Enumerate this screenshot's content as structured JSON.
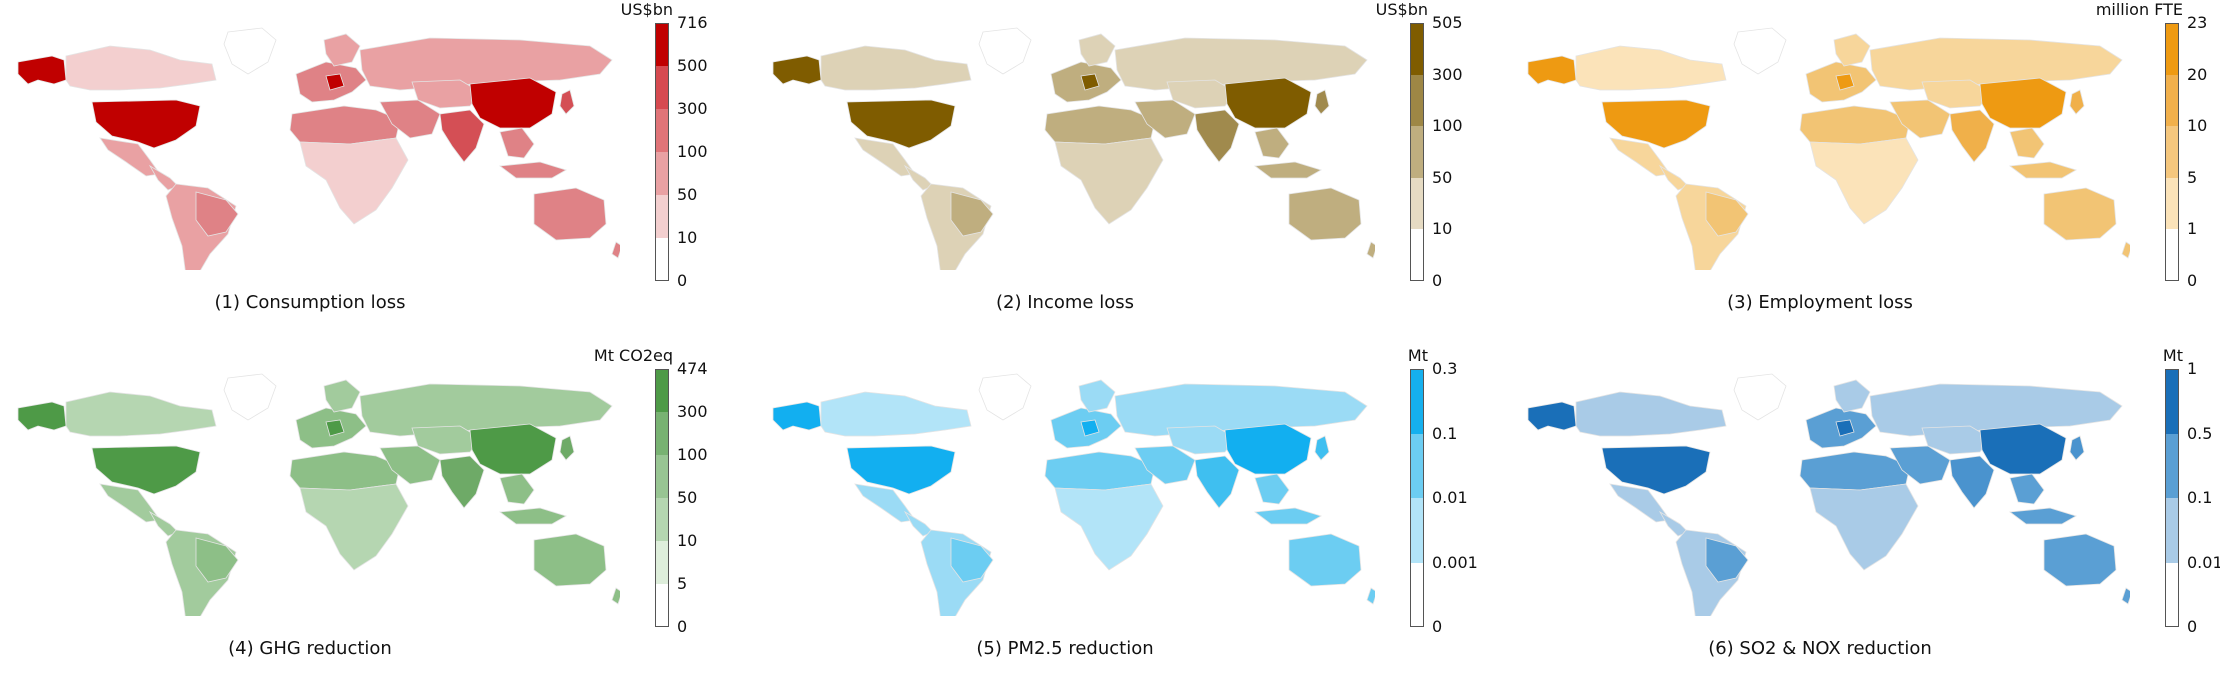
{
  "panels": [
    {
      "caption": "(1) Consumption loss",
      "unit": "US$bn",
      "ticks": [
        "0",
        "10",
        "50",
        "100",
        "300",
        "500",
        "716"
      ],
      "colors": [
        "#ffffff",
        "#f3cfcf",
        "#e9a1a3",
        "#e07478",
        "#d64a50",
        "#c00000"
      ],
      "palette": {
        "base": "#f3cfcf",
        "low": "#e9a1a3",
        "mid": "#df8286",
        "high": "#d44f55",
        "top": "#c00000"
      }
    },
    {
      "caption": "(2) Income loss",
      "unit": "US$bn",
      "ticks": [
        "0",
        "10",
        "50",
        "100",
        "300",
        "505"
      ],
      "colors": [
        "#ffffff",
        "#e6dbc3",
        "#bfae7f",
        "#9e8745",
        "#7f5c00"
      ],
      "palette": {
        "base": "#ddd2b6",
        "low": "#ddd2b6",
        "mid": "#bfae7f",
        "high": "#a08a4d",
        "top": "#7f5c00"
      }
    },
    {
      "caption": "(3) Employment loss",
      "unit": "million FTE",
      "ticks": [
        "0",
        "1",
        "5",
        "10",
        "20",
        "23"
      ],
      "colors": [
        "#ffffff",
        "#fbe3b9",
        "#f5c77e",
        "#f1b04c",
        "#ee9a12"
      ],
      "palette": {
        "base": "#fbe3b9",
        "low": "#f7d69b",
        "mid": "#f2c474",
        "high": "#f0b04a",
        "top": "#ee9a12"
      }
    },
    {
      "caption": "(4) GHG reduction",
      "unit": "Mt CO2eq",
      "ticks": [
        "0",
        "5",
        "10",
        "50",
        "100",
        "300",
        "474"
      ],
      "colors": [
        "#ffffff",
        "#deeedb",
        "#b5d6b1",
        "#98c593",
        "#78b272",
        "#4e9a47"
      ],
      "palette": {
        "base": "#b5d6b1",
        "low": "#a2cb9d",
        "mid": "#8dbf87",
        "high": "#6eaa67",
        "top": "#4e9a47"
      }
    },
    {
      "caption": "(5) PM2.5 reduction",
      "unit": "Mt",
      "ticks": [
        "0",
        "0.001",
        "0.01",
        "0.1",
        "0.3"
      ],
      "colors": [
        "#ffffff",
        "#b2e4f8",
        "#6ccdf2",
        "#15b0ee"
      ],
      "palette": {
        "base": "#b2e4f8",
        "low": "#9bdbf5",
        "mid": "#6ccdf2",
        "high": "#3fbff0",
        "top": "#12aff0"
      }
    },
    {
      "caption": "(6) SO2 & NOX reduction",
      "unit": "Mt",
      "ticks": [
        "0",
        "0.01",
        "0.1",
        "0.5",
        "1"
      ],
      "colors": [
        "#ffffff",
        "#a9cbe7",
        "#5a9fd4",
        "#1a6fb8"
      ],
      "palette": {
        "base": "#a9cbe7",
        "low": "#a9cbe7",
        "mid": "#5a9fd4",
        "high": "#4a93ce",
        "top": "#1a6fb8"
      }
    }
  ]
}
